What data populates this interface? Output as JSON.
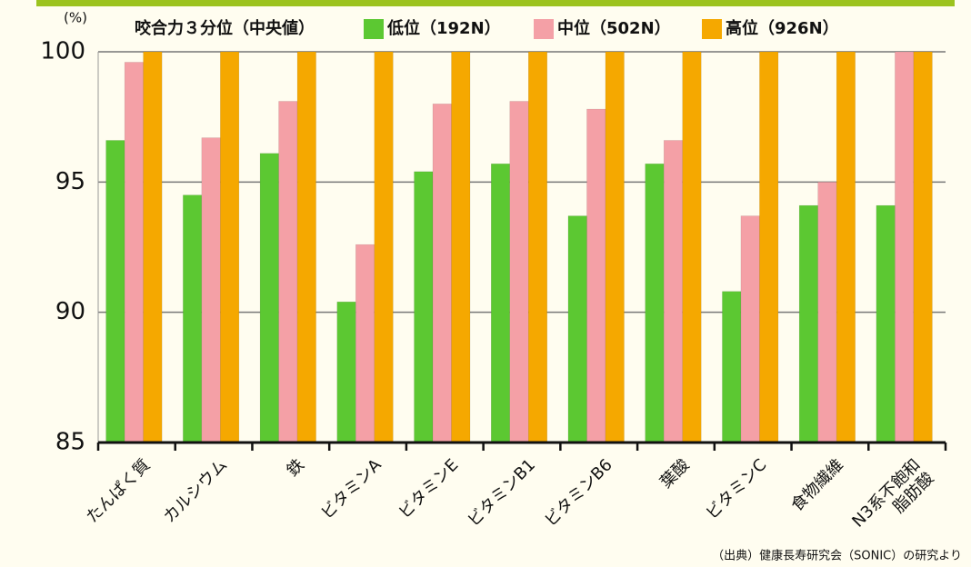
{
  "chart_data": {
    "type": "bar",
    "y_label": "(%)",
    "legend_title": "咬合力３分位（中央値）",
    "categories": [
      "たんぱく質",
      "カルシウム",
      "鉄",
      "ビタミンA",
      "ビタミンE",
      "ビタミンB1",
      "ビタミンB6",
      "葉酸",
      "ビタミンC",
      "食物繊維",
      "N3系不飽和\n脂肪酸"
    ],
    "series": [
      {
        "name": "低位（192N）",
        "color": "#5cc832",
        "values": [
          96.6,
          94.5,
          96.1,
          90.4,
          95.4,
          95.7,
          93.7,
          95.7,
          90.8,
          94.1,
          94.1
        ]
      },
      {
        "name": "中位（502N）",
        "color": "#f4a0a6",
        "values": [
          99.6,
          96.7,
          98.1,
          92.6,
          98.0,
          98.1,
          97.8,
          96.6,
          93.7,
          95.0,
          100
        ]
      },
      {
        "name": "高位（926N）",
        "color": "#f5a800",
        "values": [
          100,
          100,
          100,
          100,
          100,
          100,
          100,
          100,
          100,
          100,
          100
        ]
      }
    ],
    "ylim": [
      85,
      100
    ],
    "yticks": [
      85,
      90,
      95,
      100
    ],
    "grid": true,
    "source": "（出典）健康長寿研究会（SONIC）の研究より"
  }
}
